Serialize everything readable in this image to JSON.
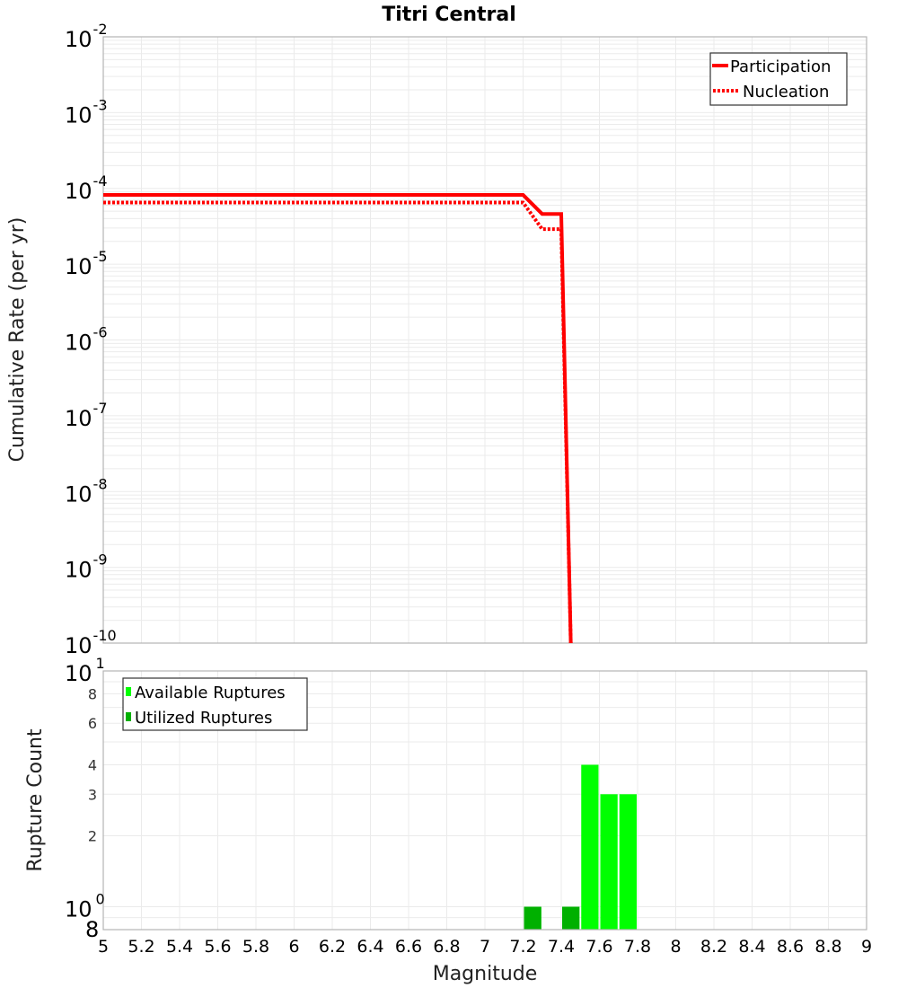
{
  "chart_data": [
    {
      "type": "line",
      "title": "Titri Central",
      "xlabel": "Magnitude",
      "ylabel": "Cumulative Rate (per yr)",
      "xlim": [
        5,
        9
      ],
      "ylim": [
        1e-10,
        0.01
      ],
      "yscale": "log",
      "grid": true,
      "legend_position": "top-right",
      "y_ticks": [
        "10^-2",
        "10^-3",
        "10^-4",
        "10^-5",
        "10^-6",
        "10^-7",
        "10^-8",
        "10^-9",
        "10^-10"
      ],
      "series": [
        {
          "name": "Participation",
          "style": "solid",
          "color": "#ff0000",
          "x": [
            5.0,
            7.2,
            7.3,
            7.4,
            7.45
          ],
          "y": [
            8.2e-05,
            8.2e-05,
            4.6e-05,
            4.6e-05,
            1e-10
          ]
        },
        {
          "name": "Nucleation",
          "style": "dotted",
          "color": "#ff0000",
          "x": [
            5.0,
            7.2,
            7.3,
            7.4,
            7.45
          ],
          "y": [
            6.5e-05,
            6.5e-05,
            2.9e-05,
            2.9e-05,
            1e-10
          ]
        }
      ]
    },
    {
      "type": "bar",
      "xlabel": "Magnitude",
      "ylabel": "Rupture Count",
      "xlim": [
        5,
        9
      ],
      "ylim": [
        0.8,
        10
      ],
      "yscale": "log",
      "grid": true,
      "legend_position": "top-left",
      "x_ticks": [
        "5",
        "5.2",
        "5.4",
        "5.6",
        "5.8",
        "6",
        "6.2",
        "6.4",
        "6.6",
        "6.8",
        "7",
        "7.2",
        "7.4",
        "7.6",
        "7.8",
        "8",
        "8.2",
        "8.4",
        "8.6",
        "8.8",
        "9"
      ],
      "y_ticks": [
        "8",
        "10^0",
        "2",
        "3",
        "4",
        "6",
        "8",
        "10^1"
      ],
      "categories": [
        7.25,
        7.45,
        7.55,
        7.65,
        7.75
      ],
      "series": [
        {
          "name": "Available Ruptures",
          "color": "#00ff00",
          "values": [
            1,
            1,
            4,
            3,
            3
          ]
        },
        {
          "name": "Utilized Ruptures",
          "color": "#00b000",
          "values": [
            1,
            1,
            0,
            0,
            0
          ]
        }
      ]
    }
  ],
  "labels": {
    "title": "Titri Central",
    "top_ylabel": "Cumulative Rate (per yr)",
    "bottom_ylabel": "Rupture Count",
    "xlabel": "Magnitude",
    "legend_top": [
      "Participation",
      "Nucleation"
    ],
    "legend_bottom": [
      "Available Ruptures",
      "Utilized Ruptures"
    ]
  },
  "colors": {
    "rate_line": "#ff0000",
    "available": "#00ff00",
    "utilized": "#00b000",
    "grid": "#ebebeb",
    "frame": "#b4b4b4"
  }
}
